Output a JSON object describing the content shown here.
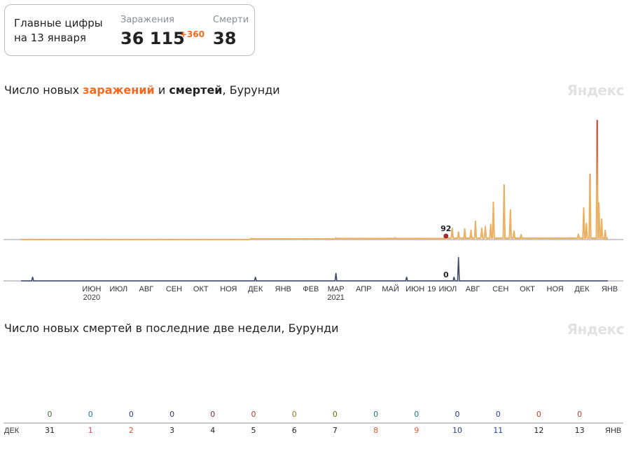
{
  "summary": {
    "lead": "Главные цифры на 13 января",
    "infections_label": "Заражения",
    "infections_value": "36 115",
    "infections_delta": "+360",
    "deaths_label": "Смерти",
    "deaths_value": "38"
  },
  "brand": "Яндекс",
  "colors": {
    "infections": "#eab163",
    "infections_peak": "#c0392b",
    "deaths": "#3c4468",
    "accent": "#f26a22"
  },
  "chart_data": [
    {
      "type": "line",
      "title_parts": [
        "Число новых ",
        "заражений",
        " и ",
        "смертей",
        ", Бурунди"
      ],
      "x_ticks": [
        {
          "label": "ИЮН",
          "sub": "2020",
          "date": "2020-06-15"
        },
        {
          "label": "ИЮЛ",
          "date": "2020-07-15"
        },
        {
          "label": "АВГ",
          "date": "2020-08-15"
        },
        {
          "label": "СЕН",
          "date": "2020-09-15"
        },
        {
          "label": "ОКТ",
          "date": "2020-10-15"
        },
        {
          "label": "НОЯ",
          "date": "2020-11-15"
        },
        {
          "label": "ДЕК",
          "date": "2020-12-15"
        },
        {
          "label": "ЯНВ",
          "date": "2021-01-15"
        },
        {
          "label": "ФЕВ",
          "date": "2021-02-15"
        },
        {
          "label": "МАР",
          "sub": "2021",
          "date": "2021-03-15"
        },
        {
          "label": "АПР",
          "date": "2021-04-15"
        },
        {
          "label": "МАЙ",
          "date": "2021-05-15"
        },
        {
          "label": "ИЮН",
          "date": "2021-06-15"
        },
        {
          "label": "ИЮЛ",
          "date": "2021-07-18"
        },
        {
          "label": "АВГ",
          "date": "2021-08-15"
        },
        {
          "label": "СЕН",
          "date": "2021-09-15"
        },
        {
          "label": "ОКТ",
          "date": "2021-10-15"
        },
        {
          "label": "НОЯ",
          "date": "2021-11-15"
        },
        {
          "label": "ДЕК",
          "date": "2021-12-15"
        },
        {
          "label": "ЯНВ",
          "date": "2022-01-15"
        }
      ],
      "x_range": [
        "2020-03-28",
        "2022-01-13"
      ],
      "hover": {
        "date_label": "19",
        "date": "2021-07-16",
        "infections": "92",
        "deaths": "0"
      },
      "infections": [
        {
          "date": "2020-03-28",
          "value": 5
        },
        {
          "date": "2020-12-10",
          "value": 40
        },
        {
          "date": "2021-03-15",
          "value": 60
        },
        {
          "date": "2021-05-20",
          "value": 60
        },
        {
          "date": "2021-07-16",
          "value": 92
        },
        {
          "date": "2021-07-23",
          "value": 370
        },
        {
          "date": "2021-07-30",
          "value": 250
        },
        {
          "date": "2021-08-06",
          "value": 350
        },
        {
          "date": "2021-08-13",
          "value": 300
        },
        {
          "date": "2021-08-18",
          "value": 600
        },
        {
          "date": "2021-08-25",
          "value": 370
        },
        {
          "date": "2021-08-29",
          "value": 430
        },
        {
          "date": "2021-09-04",
          "value": 500
        },
        {
          "date": "2021-09-07",
          "value": 1220
        },
        {
          "date": "2021-09-19",
          "value": 1790
        },
        {
          "date": "2021-09-26",
          "value": 970
        },
        {
          "date": "2021-09-30",
          "value": 280
        },
        {
          "date": "2021-10-08",
          "value": 160
        },
        {
          "date": "2021-12-11",
          "value": 180
        },
        {
          "date": "2021-12-17",
          "value": 1040
        },
        {
          "date": "2021-12-20",
          "value": 530
        },
        {
          "date": "2021-12-24",
          "value": 2140
        },
        {
          "date": "2022-01-01",
          "value": 3900
        },
        {
          "date": "2022-01-03",
          "value": 1200
        },
        {
          "date": "2022-01-06",
          "value": 670
        },
        {
          "date": "2022-01-10",
          "value": 300
        }
      ],
      "infections_max": 3900,
      "deaths": [
        {
          "date": "2020-04-10",
          "value": 1
        },
        {
          "date": "2020-12-15",
          "value": 1
        },
        {
          "date": "2021-03-15",
          "value": 2
        },
        {
          "date": "2021-06-02",
          "value": 1
        },
        {
          "date": "2021-07-25",
          "value": 1
        },
        {
          "date": "2021-07-30",
          "value": 6
        }
      ],
      "deaths_max": 6
    },
    {
      "type": "bar",
      "title": "Число новых смертей в последние две недели, Бурунди",
      "month_start": "ДЕК",
      "month_end": "ЯНВ",
      "categories": [
        "31",
        "1",
        "2",
        "3",
        "4",
        "5",
        "6",
        "7",
        "8",
        "9",
        "10",
        "11",
        "12",
        "13"
      ],
      "category_colors": [
        "#222",
        "#e8456b",
        "#e8553a",
        "#222",
        "#222",
        "#222",
        "#222",
        "#222",
        "#e8553a",
        "#e8553a",
        "#2a3d8f",
        "#2a3d8f",
        "#222",
        "#222"
      ],
      "values": [
        0,
        0,
        0,
        0,
        0,
        0,
        0,
        0,
        0,
        0,
        0,
        0,
        0,
        0
      ],
      "value_colors": [
        "#3a6e3a",
        "#1d7a8a",
        "#2a3d8f",
        "#2a3060",
        "#7a2a3a",
        "#c0392b",
        "#8a7a1a",
        "#6a6a1a",
        "#1d7a6a",
        "#1d7a7a",
        "#2a3080",
        "#2a3d9f",
        "#c0392b",
        "#c0392b"
      ]
    }
  ]
}
